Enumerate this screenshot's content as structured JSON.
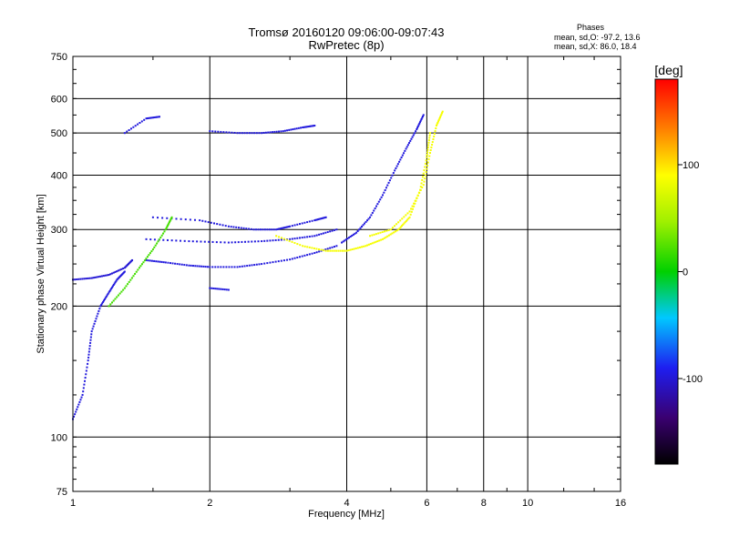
{
  "title_line1": "Tromsø 20160120 09:06:00-09:07:43",
  "title_line2": "RwPretec (8p)",
  "stats": {
    "heading": "Phases",
    "line_o": "mean, sd,O:  -97.2,  13.6",
    "line_x": "mean, sd,X:  86.0,  18.4"
  },
  "chart_data": {
    "type": "scatter",
    "xlabel": "Frequency [MHz]",
    "ylabel": "Stationary phase Virtual Height [km]",
    "x_scale": "log",
    "y_scale": "log",
    "xlim": [
      1,
      16
    ],
    "ylim": [
      75,
      750
    ],
    "x_ticks": [
      1,
      2,
      4,
      6,
      8,
      10,
      16
    ],
    "x_tick_labels": [
      "1",
      "2",
      "4",
      "6",
      "8",
      "10",
      "16"
    ],
    "y_ticks": [
      75,
      100,
      200,
      300,
      400,
      500,
      600,
      750
    ],
    "y_tick_labels": [
      "75",
      "100",
      "200",
      "300",
      "400",
      "500",
      "600",
      "750"
    ],
    "grid": true,
    "colorbar": {
      "label": "[deg]",
      "range": [
        -180,
        180
      ],
      "ticks": [
        -100,
        0,
        100
      ],
      "tick_labels": [
        "-100",
        "0",
        "100"
      ],
      "colormap": "rainbow"
    },
    "traces": [
      {
        "name": "",
        "phase_deg": -97,
        "points": [
          [
            1.45,
            255
          ],
          [
            1.6,
            252
          ],
          [
            1.8,
            248
          ],
          [
            2.0,
            246
          ],
          [
            2.3,
            246
          ],
          [
            2.6,
            250
          ],
          [
            3.0,
            256
          ],
          [
            3.4,
            265
          ],
          [
            3.8,
            275
          ]
        ]
      },
      {
        "name": "",
        "phase_deg": -97,
        "points": [
          [
            1.45,
            285
          ],
          [
            1.8,
            282
          ],
          [
            2.2,
            280
          ],
          [
            2.6,
            282
          ],
          [
            3.0,
            285
          ],
          [
            3.4,
            290
          ],
          [
            3.8,
            300
          ]
        ]
      },
      {
        "name": "",
        "phase_deg": -97,
        "points": [
          [
            1.5,
            320
          ],
          [
            1.9,
            315
          ],
          [
            2.2,
            305
          ],
          [
            2.5,
            300
          ],
          [
            2.8,
            300
          ],
          [
            3.0,
            305
          ],
          [
            3.4,
            315
          ],
          [
            3.6,
            320
          ]
        ]
      },
      {
        "name": "",
        "phase_deg": -97,
        "points": [
          [
            2.0,
            505
          ],
          [
            2.3,
            500
          ],
          [
            2.6,
            500
          ],
          [
            2.9,
            505
          ],
          [
            3.2,
            515
          ],
          [
            3.4,
            520
          ]
        ]
      },
      {
        "name": "",
        "phase_deg": -97,
        "points": [
          [
            3.9,
            280
          ],
          [
            4.2,
            295
          ],
          [
            4.5,
            320
          ],
          [
            4.8,
            360
          ],
          [
            5.1,
            410
          ],
          [
            5.4,
            460
          ],
          [
            5.7,
            510
          ],
          [
            5.9,
            550
          ]
        ]
      },
      {
        "name": "",
        "phase_deg": 86,
        "points": [
          [
            2.8,
            290
          ],
          [
            3.2,
            275
          ],
          [
            3.6,
            268
          ],
          [
            4.0,
            268
          ],
          [
            4.4,
            275
          ],
          [
            4.8,
            285
          ],
          [
            5.2,
            300
          ],
          [
            5.5,
            320
          ],
          [
            5.8,
            370
          ],
          [
            6.0,
            440
          ],
          [
            6.1,
            500
          ]
        ]
      },
      {
        "name": "",
        "phase_deg": 86,
        "points": [
          [
            4.5,
            290
          ],
          [
            5.0,
            300
          ],
          [
            5.5,
            330
          ],
          [
            5.9,
            380
          ],
          [
            6.1,
            450
          ],
          [
            6.3,
            520
          ],
          [
            6.5,
            560
          ]
        ]
      },
      {
        "name": "",
        "phase_deg": -97,
        "points": [
          [
            1.0,
            110
          ],
          [
            1.05,
            125
          ],
          [
            1.08,
            150
          ],
          [
            1.1,
            175
          ],
          [
            1.15,
            200
          ],
          [
            1.2,
            215
          ],
          [
            1.25,
            230
          ],
          [
            1.3,
            240
          ]
        ]
      },
      {
        "name": "",
        "phase_deg": -100,
        "points": [
          [
            1.0,
            230
          ],
          [
            1.1,
            232
          ],
          [
            1.2,
            236
          ],
          [
            1.3,
            245
          ],
          [
            1.35,
            255
          ]
        ]
      },
      {
        "name": "",
        "phase_deg": 20,
        "points": [
          [
            1.2,
            200
          ],
          [
            1.3,
            220
          ],
          [
            1.4,
            245
          ],
          [
            1.5,
            270
          ],
          [
            1.6,
            300
          ],
          [
            1.65,
            320
          ]
        ]
      },
      {
        "name": "",
        "phase_deg": -97,
        "points": [
          [
            1.3,
            500
          ],
          [
            1.45,
            540
          ],
          [
            1.55,
            545
          ]
        ]
      },
      {
        "name": "",
        "phase_deg": -97,
        "points": [
          [
            2.0,
            220
          ],
          [
            2.2,
            218
          ]
        ]
      }
    ]
  },
  "colors": {
    "axis": "#000000",
    "background": "#ffffff"
  }
}
